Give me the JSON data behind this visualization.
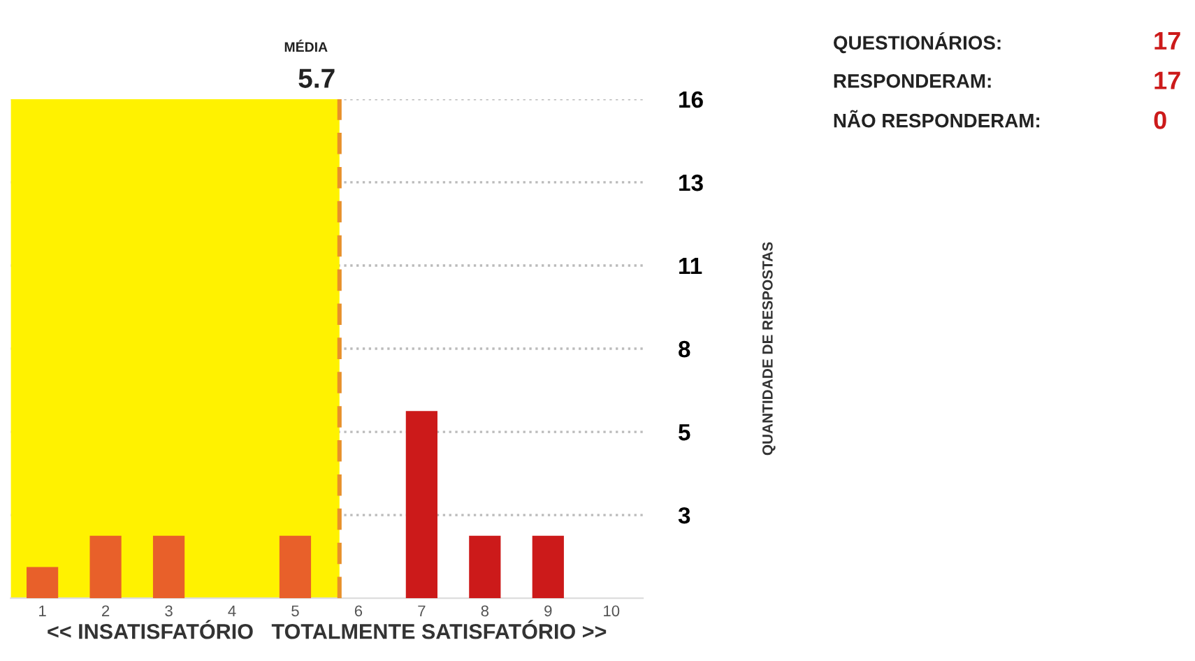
{
  "chart_data": {
    "type": "bar",
    "x": [
      1,
      2,
      3,
      4,
      5,
      6,
      7,
      8,
      9,
      10
    ],
    "values": [
      1,
      2,
      2,
      0,
      2,
      0,
      6,
      2,
      2,
      0
    ],
    "colors": [
      "#e8602a",
      "#e8602a",
      "#e8602a",
      "#e8602a",
      "#e8602a",
      "#cc1a1a",
      "#cc1a1a",
      "#cc1a1a",
      "#cc1a1a",
      "#cc1a1a"
    ],
    "xlim": [
      0.5,
      10.5
    ],
    "xticks": [
      1,
      2,
      3,
      4,
      5,
      6,
      7,
      8,
      9,
      10
    ],
    "ylim": [
      0,
      16
    ],
    "yticks": [
      {
        "value": 2.667,
        "label": "3"
      },
      {
        "value": 5.333,
        "label": "5"
      },
      {
        "value": 8,
        "label": "8"
      },
      {
        "value": 10.667,
        "label": "11"
      },
      {
        "value": 13.333,
        "label": "13"
      },
      {
        "value": 16,
        "label": "16"
      }
    ],
    "xlabel": "<< INSATISFATÓRIO   TOTALMENTE SATISFATÓRIO >>",
    "ylabel": "QUANTIDADE DE RESPOSTAS",
    "grid": "y",
    "bands": [
      {
        "axis": "x",
        "from": 0.5,
        "to": 5.7,
        "color": "#fff200"
      }
    ],
    "ref_lines": [
      {
        "axis": "x",
        "value": 5.7,
        "color": "#e8902a",
        "line_style": "dashed"
      }
    ],
    "annotations": [
      "MÉDIA",
      {
        "text": "5.7",
        "x": 5.7,
        "y": 16
      },
      "QUESTIONÁRIOS:",
      "17",
      "RESPONDERAM:",
      "17",
      "NÃO RESPONDERAM:",
      "0"
    ]
  }
}
